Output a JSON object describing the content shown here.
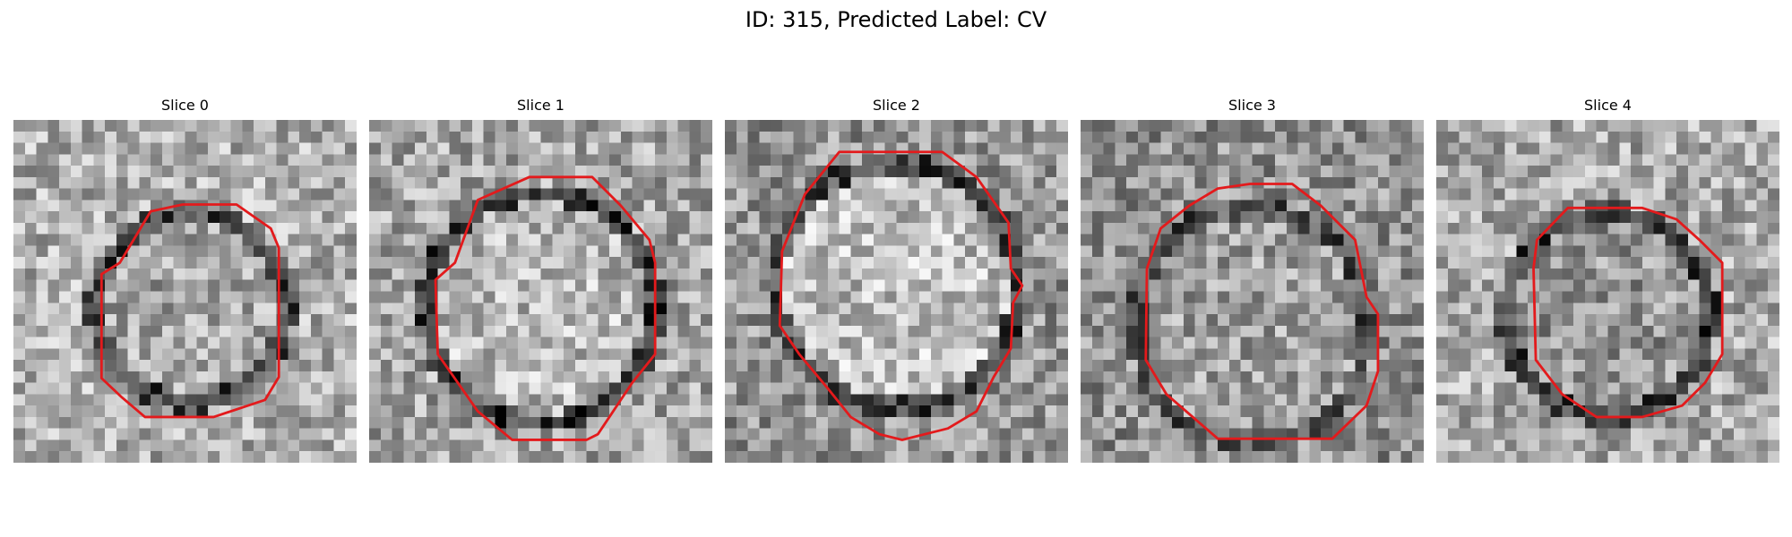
{
  "figure": {
    "suptitle": "ID: 315, Predicted Label: CV",
    "contour_color": "#e31a1c",
    "colormap": "gray",
    "slices": [
      {
        "title": "Slice 0",
        "image": "noisy-grayscale-vesicle",
        "contour": "red-octagon-outline"
      },
      {
        "title": "Slice 1",
        "image": "noisy-grayscale-vesicle",
        "contour": "red-octagon-outline"
      },
      {
        "title": "Slice 2",
        "image": "noisy-grayscale-vesicle",
        "contour": "red-octagon-outline"
      },
      {
        "title": "Slice 3",
        "image": "noisy-grayscale-vesicle",
        "contour": "red-octagon-outline"
      },
      {
        "title": "Slice 4",
        "image": "noisy-grayscale-vesicle",
        "contour": "red-octagon-outline"
      }
    ]
  }
}
